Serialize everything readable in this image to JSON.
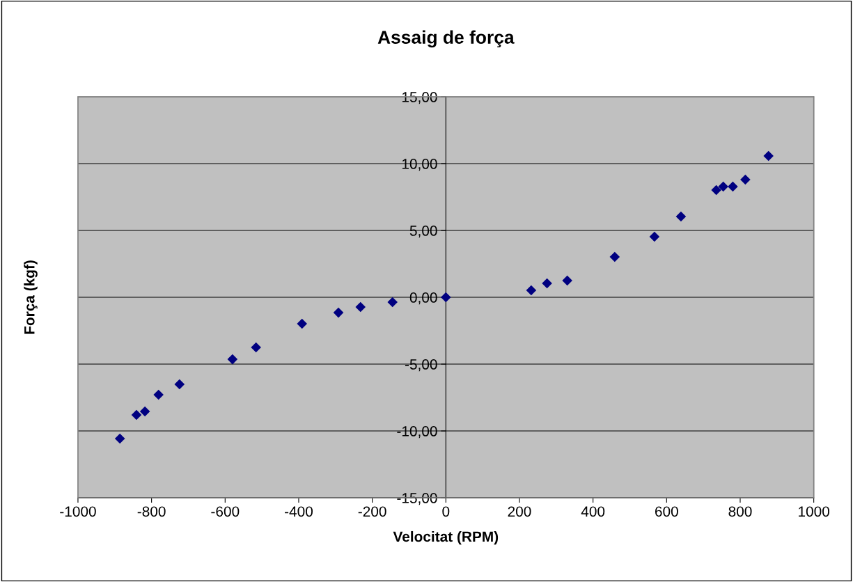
{
  "chart_data": {
    "type": "scatter",
    "title": "Assaig de força",
    "xlabel": "Velocitat (RPM)",
    "ylabel": "Força (kgf)",
    "x": [
      -886,
      -841,
      -818,
      -781,
      -724,
      -580,
      -516,
      -391,
      -292,
      -232,
      -145,
      0,
      232,
      275,
      330,
      459,
      567,
      639,
      735,
      754,
      780,
      814,
      877
    ],
    "series": [
      {
        "color": "#000080",
        "values": [
          -10.57,
          -8.8,
          -8.54,
          -7.29,
          -6.51,
          -4.64,
          -3.75,
          -1.98,
          -1.15,
          -0.73,
          -0.36,
          0,
          0.52,
          1.04,
          1.25,
          3.02,
          4.53,
          6.04,
          8.02,
          8.28,
          8.28,
          8.8,
          10.57
        ]
      }
    ],
    "xlim": [
      -1000,
      1000
    ],
    "xticks": [
      -1000,
      -800,
      -600,
      -400,
      -200,
      0,
      200,
      400,
      600,
      800,
      1000
    ],
    "ylim": [
      -15,
      15
    ],
    "yticks": [
      {
        "value": -15,
        "label": "-15,00"
      },
      {
        "value": -10,
        "label": "-10,00"
      },
      {
        "value": -5,
        "label": "-5,00"
      },
      {
        "value": 0,
        "label": "0,00"
      },
      {
        "value": 5,
        "label": "5,00"
      },
      {
        "value": 10,
        "label": "10,00"
      },
      {
        "value": 15,
        "label": "15,00"
      }
    ],
    "grid": "y",
    "marker": "diamond",
    "legend": false
  }
}
